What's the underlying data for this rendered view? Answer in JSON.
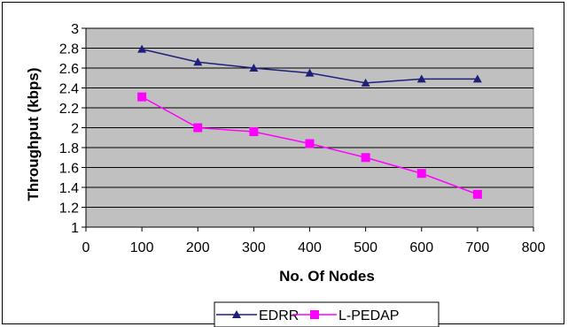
{
  "chart_data": {
    "type": "line",
    "xlabel": "No. Of Nodes",
    "ylabel": "Throughput (kbps)",
    "xlim": [
      0,
      800
    ],
    "ylim": [
      1,
      3
    ],
    "x_ticks": [
      0,
      100,
      200,
      300,
      400,
      500,
      600,
      700,
      800
    ],
    "y_ticks": [
      1,
      1.2,
      1.4,
      1.6,
      1.8,
      2,
      2.2,
      2.4,
      2.6,
      2.8,
      3
    ],
    "grid": true,
    "legend_position": "bottom",
    "series": [
      {
        "name": "EDRR",
        "color": "#1f1f7a",
        "marker": "triangle",
        "x": [
          100,
          200,
          300,
          400,
          500,
          600,
          700
        ],
        "y": [
          2.79,
          2.66,
          2.6,
          2.55,
          2.45,
          2.49,
          2.49
        ]
      },
      {
        "name": "L-PEDAP",
        "color": "#ff00ff",
        "marker": "square",
        "x": [
          100,
          200,
          300,
          400,
          500,
          600,
          700
        ],
        "y": [
          2.31,
          2.0,
          1.96,
          1.84,
          1.7,
          1.54,
          1.33
        ]
      }
    ],
    "plot_background": "#c0c0c0"
  }
}
